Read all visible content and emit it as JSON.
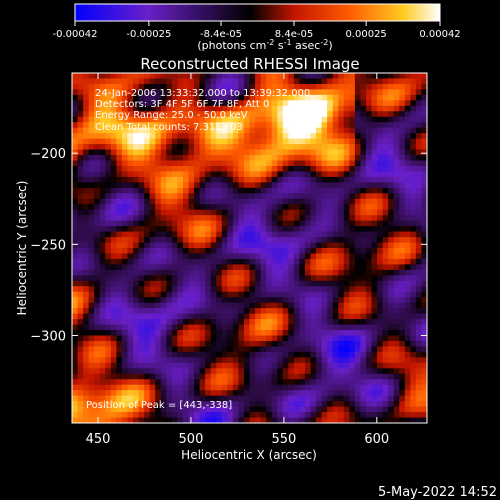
{
  "colorbar": {
    "tick_labels": [
      "-0.00042",
      "-0.00025",
      "-8.4e-05",
      "8.4e-05",
      "0.00025",
      "0.00042"
    ],
    "tick_values": [
      -0.00042,
      -0.00025,
      -8.4e-05,
      8.4e-05,
      0.00025,
      0.00042
    ],
    "range": [
      -0.00042,
      0.00042
    ],
    "unit_prefix": "(photons cm",
    "unit_exp1": "-2",
    "unit_mid": " s",
    "unit_exp2": "-1",
    "unit_mid2": " asec",
    "unit_exp3": "-2",
    "unit_suffix": ")",
    "colors": [
      "#0000ff",
      "#6a1fc8",
      "#000000",
      "#c21500",
      "#ff5a00",
      "#ffcc22",
      "#ffffff"
    ]
  },
  "chart_data": {
    "type": "heatmap",
    "title": "Reconstructed RHESSI Image",
    "xlabel": "Heliocentric X (arcsec)",
    "ylabel": "Heliocentric Y (arcsec)",
    "xlim": [
      436,
      627
    ],
    "ylim": [
      -348,
      -156
    ],
    "xticks": [
      450,
      500,
      550,
      600
    ],
    "xtick_labels": [
      "450",
      "500",
      "550",
      "600"
    ],
    "yticks": [
      -200,
      -250,
      -300
    ],
    "ytick_labels": [
      "−200",
      "−250",
      "−300"
    ],
    "annotations": [
      "24-Jan-2006 13:33:32.000 to 13:39:32.000",
      "Detectors: 3F 4F 5F 6F 7F 8F, Att 0",
      "Energy Range: 25.0 - 50.0 keV",
      "Clean    Total counts: 7.31E+03"
    ],
    "peak_label": "Position of Peak = [443,-338]",
    "peak_position": [
      443,
      -338
    ]
  },
  "footer": {
    "timestamp": "5-May-2022 14:52"
  }
}
